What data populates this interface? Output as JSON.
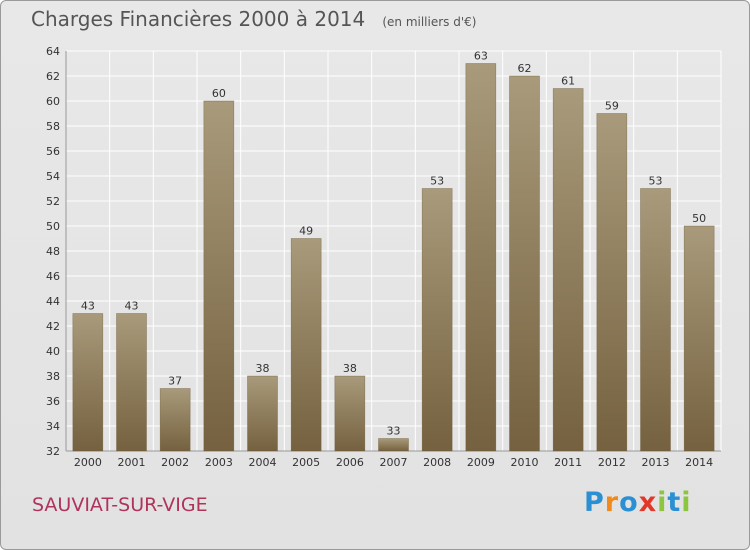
{
  "title": "Charges Financières 2000 à 2014",
  "subtitle": "(en milliers d'€)",
  "place": "SAUVIAT-SUR-VIGE",
  "logo": {
    "letters": [
      "P",
      "r",
      "o",
      "x",
      "i",
      "t",
      "i"
    ],
    "colors": [
      "#2a8fd3",
      "#f08a1c",
      "#2a8fd3",
      "#e2382a",
      "#8cc63e",
      "#2a8fd3",
      "#8cc63e"
    ]
  },
  "colors": {
    "bar_top": "#a89a7b",
    "bar_bottom": "#75613f",
    "grid": "#ffffff",
    "text": "#333333"
  },
  "chart_data": {
    "type": "bar",
    "title": "Charges Financières 2000 à 2014",
    "subtitle": "(en milliers d'€)",
    "categories": [
      "2000",
      "2001",
      "2002",
      "2003",
      "2004",
      "2005",
      "2006",
      "2007",
      "2008",
      "2009",
      "2010",
      "2011",
      "2012",
      "2013",
      "2014"
    ],
    "values": [
      43,
      43,
      37,
      60,
      38,
      49,
      38,
      33,
      53,
      63,
      62,
      61,
      59,
      53,
      50
    ],
    "ylim": [
      32,
      64
    ],
    "yticks": [
      32,
      34,
      36,
      38,
      40,
      42,
      44,
      46,
      48,
      50,
      52,
      54,
      56,
      58,
      60,
      62,
      64
    ],
    "grid": true,
    "data_labels": true
  }
}
